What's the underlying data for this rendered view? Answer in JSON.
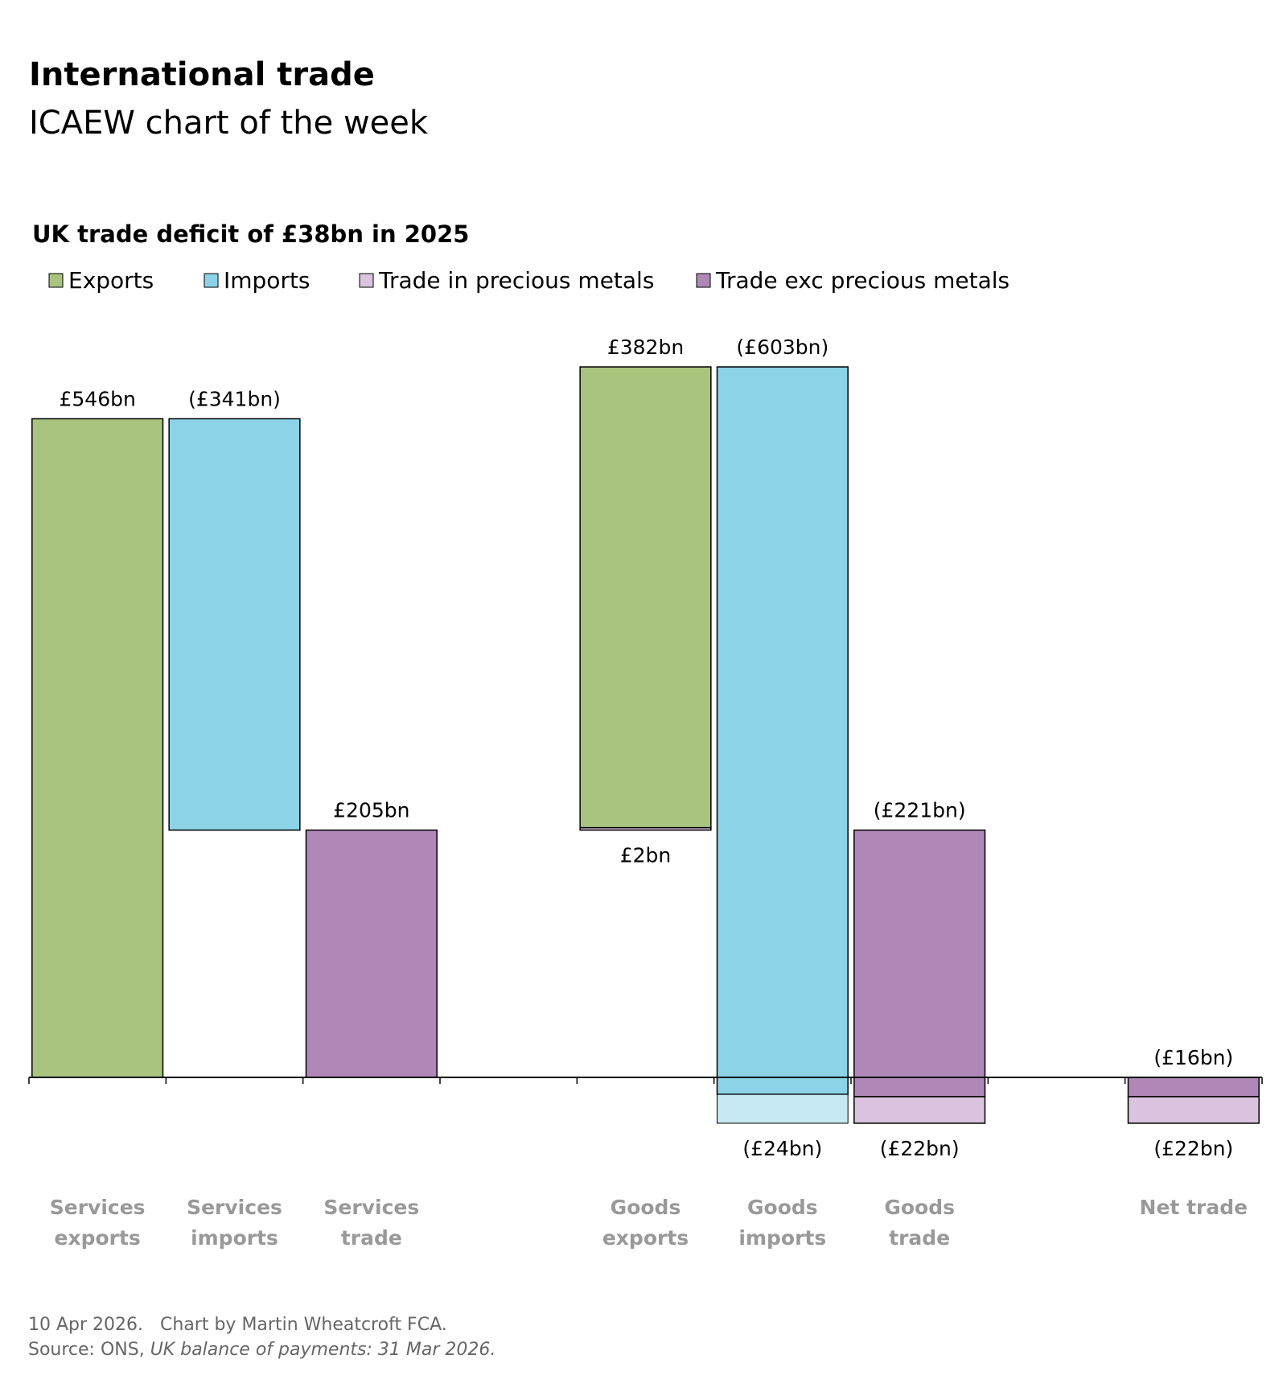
{
  "header": {
    "title": "International trade",
    "subtitle": "ICAEW chart of the week"
  },
  "chart_data": {
    "type": "waterfall",
    "title": "UK trade deficit of £38bn in 2025",
    "categories": [
      "Services exports",
      "Services imports",
      "Services trade",
      null,
      "Goods exports",
      "Goods imports",
      "Goods trade",
      null,
      "Net trade"
    ],
    "series": [
      {
        "name": "Exports",
        "color": "#a9c47f",
        "values": [
          546,
          null,
          null,
          null,
          382,
          null,
          null,
          null,
          null
        ],
        "value_labels": [
          "£546bn",
          null,
          null,
          null,
          "£382bn",
          null,
          null,
          null,
          null
        ]
      },
      {
        "name": "Imports",
        "color": "#8dd3e7",
        "values": [
          null,
          -341,
          null,
          null,
          null,
          -603,
          null,
          null,
          null
        ],
        "value_labels": [
          null,
          "(£341bn)",
          null,
          null,
          null,
          "(£603bn)",
          null,
          null,
          null
        ]
      },
      {
        "name": "Trade in precious metals",
        "color": "#d9c3de",
        "values": [
          null,
          null,
          null,
          null,
          2,
          -24,
          -22,
          null,
          -22
        ],
        "value_labels": [
          null,
          null,
          null,
          null,
          "£2bn",
          "(£24bn)",
          "(£22bn)",
          null,
          "(£22bn)"
        ]
      },
      {
        "name": "Trade exc precious metals",
        "color": "#b088b8",
        "values": [
          null,
          null,
          205,
          null,
          null,
          null,
          -221,
          null,
          -16
        ],
        "value_labels": [
          null,
          null,
          "£205bn",
          null,
          null,
          null,
          "(£221bn)",
          null,
          "(£16bn)"
        ]
      }
    ]
  },
  "footer": {
    "date": "10 Apr 2026.",
    "credit": "Chart by Martin Wheatcroft FCA.",
    "source_prefix": "Source: ONS,",
    "source_title": "UK balance of payments: 31 Mar 2026."
  }
}
